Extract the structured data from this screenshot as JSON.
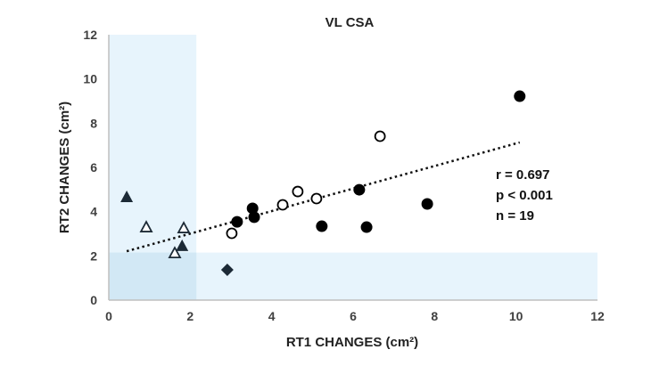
{
  "chart_data": {
    "type": "scatter",
    "title": "VL CSA",
    "xlabel": "RT1 CHANGES (cm²)",
    "ylabel": "RT2 CHANGES (cm²)",
    "xlim": [
      0,
      12
    ],
    "ylim": [
      0,
      12
    ],
    "xticks": [
      "0",
      "2",
      "4",
      "6",
      "8",
      "10",
      "12"
    ],
    "yticks": [
      "0",
      "2",
      "4",
      "6",
      "8",
      "10",
      "12"
    ],
    "grid": false,
    "shaded_regions": [
      {
        "x": [
          0,
          2.15
        ],
        "y": [
          0,
          12
        ]
      },
      {
        "x": [
          0,
          12
        ],
        "y": [
          0,
          2.15
        ]
      }
    ],
    "series": [
      {
        "marker": "filled-triangle",
        "points": [
          [
            0.44,
            4.67
          ],
          [
            1.8,
            2.46
          ]
        ]
      },
      {
        "marker": "open-triangle",
        "points": [
          [
            0.92,
            3.3
          ],
          [
            1.84,
            3.26
          ],
          [
            1.62,
            2.13
          ]
        ]
      },
      {
        "marker": "filled-diamond",
        "points": [
          [
            2.91,
            1.37
          ]
        ]
      },
      {
        "marker": "filled-circle",
        "points": [
          [
            10.09,
            9.22
          ],
          [
            3.15,
            3.54
          ],
          [
            3.53,
            4.15
          ],
          [
            3.57,
            3.75
          ],
          [
            5.23,
            3.34
          ],
          [
            6.15,
            4.99
          ],
          [
            6.33,
            3.3
          ],
          [
            7.82,
            4.35
          ]
        ]
      },
      {
        "marker": "open-circle",
        "points": [
          [
            3.02,
            3.02
          ],
          [
            4.27,
            4.31
          ],
          [
            4.64,
            4.91
          ],
          [
            5.1,
            4.59
          ],
          [
            6.66,
            7.41
          ]
        ]
      }
    ],
    "trendline": {
      "style": "dotted",
      "x": [
        0.44,
        10.09
      ],
      "y": [
        2.21,
        7.13
      ]
    },
    "annotations": [
      "r = 0.697",
      "p < 0.001",
      "n = 19"
    ],
    "colors": {
      "marker": "#1c2a36",
      "shade": "#e3f2fb",
      "shade_overlap": "#d2e8f5",
      "axis": "#bfbfbf"
    }
  }
}
